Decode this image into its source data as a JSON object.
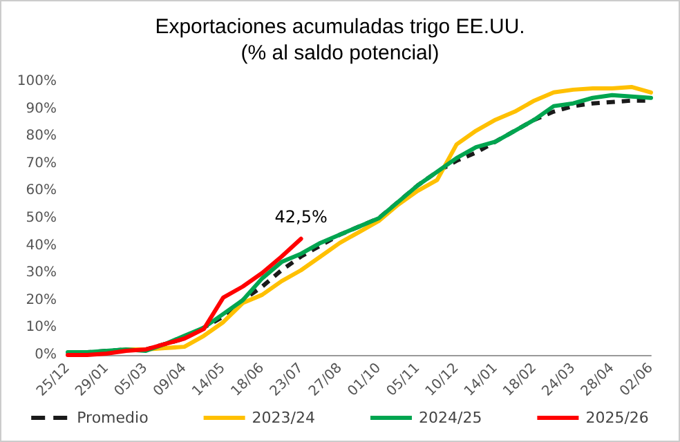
{
  "chart_data": {
    "type": "line",
    "title": "Exportaciones acumuladas trigo EE.UU.",
    "subtitle": "(% al saldo potencial)",
    "categories": [
      "25/12",
      null,
      "29/01",
      null,
      "05/03",
      null,
      "09/04",
      null,
      "14/05",
      null,
      "18/06",
      null,
      "23/07",
      null,
      "27/08",
      null,
      "01/10",
      null,
      "05/11",
      null,
      "10/12",
      null,
      "14/01",
      null,
      "18/02",
      null,
      "24/03",
      null,
      "28/04",
      null,
      "02/06"
    ],
    "series": [
      {
        "name": "Promedio",
        "color": "#1a1a1a",
        "line_style": "dashed",
        "values": [
          0.5,
          1,
          1.5,
          2,
          2,
          4,
          6,
          10,
          14,
          20,
          25,
          31,
          36,
          40,
          44,
          47,
          50,
          56,
          62,
          67,
          71,
          74,
          78,
          82,
          86,
          89,
          91,
          92,
          92.5,
          93,
          93
        ]
      },
      {
        "name": "2023/24",
        "color": "#ffc000",
        "values": [
          null,
          null,
          1,
          2,
          2,
          2.5,
          3,
          7,
          12,
          19,
          22,
          27,
          31,
          36,
          41,
          45,
          49,
          55,
          60,
          64,
          77,
          82,
          86,
          89,
          93,
          96,
          97,
          97.5,
          97.5,
          98,
          96
        ]
      },
      {
        "name": "2024/25",
        "color": "#00a550",
        "values": [
          1,
          1,
          1.5,
          2,
          1.5,
          4,
          7,
          10,
          15,
          20,
          28,
          34,
          37,
          41,
          44,
          47,
          50,
          56,
          62,
          67,
          72,
          76,
          78,
          82,
          86,
          91,
          92,
          94,
          95,
          94.5,
          94
        ]
      },
      {
        "name": "2025/26",
        "color": "#ff0000",
        "values": [
          0,
          0,
          0.5,
          1.5,
          2,
          4,
          6,
          9.5,
          21,
          25,
          30,
          36,
          42.5,
          null,
          null,
          null,
          null,
          null,
          null,
          null,
          null,
          null,
          null,
          null,
          null,
          null,
          null,
          null,
          null,
          null,
          null
        ],
        "value_labels": [
          null,
          null,
          null,
          null,
          null,
          null,
          null,
          null,
          null,
          null,
          null,
          null,
          "42,5%",
          null,
          null,
          null,
          null,
          null,
          null,
          null,
          null,
          null,
          null,
          null,
          null,
          null,
          null,
          null,
          null,
          null,
          null
        ]
      }
    ],
    "ylim": [
      0,
      100
    ],
    "yticks": [
      {
        "value": 0,
        "label": "0%"
      },
      {
        "value": 10,
        "label": "10%"
      },
      {
        "value": 20,
        "label": "20%"
      },
      {
        "value": 30,
        "label": "30%"
      },
      {
        "value": 40,
        "label": "40%"
      },
      {
        "value": 50,
        "label": "50%"
      },
      {
        "value": 60,
        "label": "60%"
      },
      {
        "value": 70,
        "label": "70%"
      },
      {
        "value": 80,
        "label": "80%"
      },
      {
        "value": 90,
        "label": "90%"
      },
      {
        "value": 100,
        "label": "100%"
      }
    ],
    "grid": false,
    "legend": "bottom",
    "marker": "none",
    "line_style": "solid"
  }
}
